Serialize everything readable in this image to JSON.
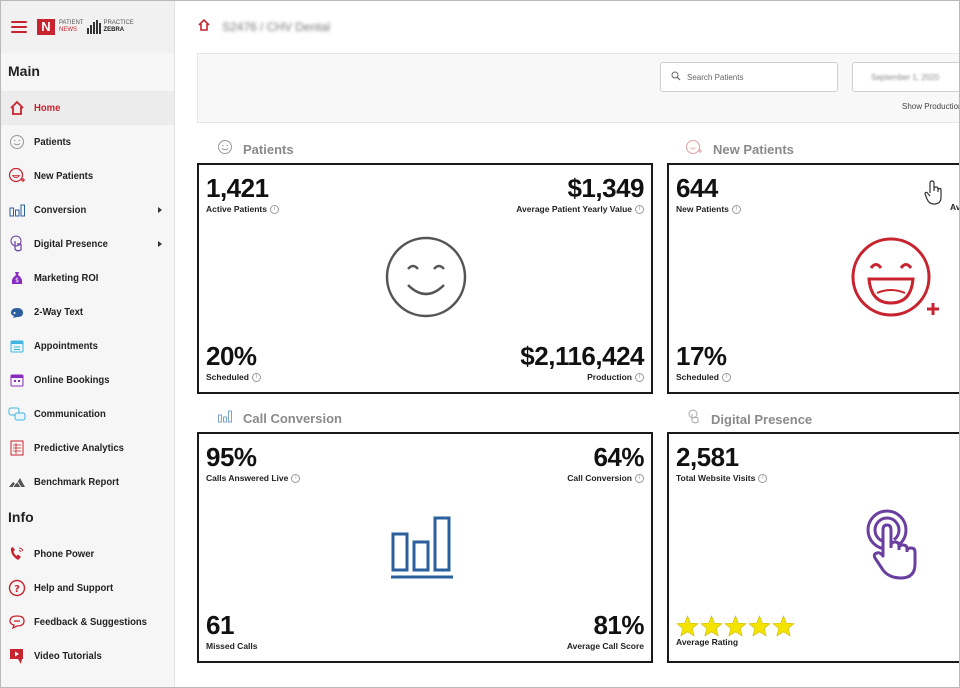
{
  "brand": {
    "logo_n": "N",
    "logo_text_1": "PATIENT",
    "logo_text_2": "NEWS",
    "logo_zebra_1": "PRACTICE",
    "logo_zebra_2": "ZEBRA"
  },
  "breadcrumb": {
    "text": "S2476 / CHV Dental"
  },
  "sidebar": {
    "main_title": "Main",
    "main_items": [
      {
        "label": "Home",
        "icon": "home-icon",
        "active": true
      },
      {
        "label": "Patients",
        "icon": "smile-icon"
      },
      {
        "label": "New Patients",
        "icon": "new-patient-icon"
      },
      {
        "label": "Conversion",
        "icon": "bar-chart-icon",
        "submenu": true
      },
      {
        "label": "Digital Presence",
        "icon": "pointer-icon",
        "submenu": true
      },
      {
        "label": "Marketing ROI",
        "icon": "money-bag-icon"
      },
      {
        "label": "2-Way Text",
        "icon": "chat-icon"
      },
      {
        "label": "Appointments",
        "icon": "calendar-icon"
      },
      {
        "label": "Online Bookings",
        "icon": "booking-icon"
      },
      {
        "label": "Communication",
        "icon": "communication-icon"
      },
      {
        "label": "Predictive Analytics",
        "icon": "analytics-icon"
      },
      {
        "label": "Benchmark Report",
        "icon": "benchmark-icon"
      }
    ],
    "info_title": "Info",
    "info_items": [
      {
        "label": "Phone Power",
        "icon": "phone-icon"
      },
      {
        "label": "Help and Support",
        "icon": "help-icon"
      },
      {
        "label": "Feedback & Suggestions",
        "icon": "feedback-icon"
      },
      {
        "label": "Video Tutorials",
        "icon": "video-icon"
      }
    ]
  },
  "toolbar": {
    "search_placeholder": "Search Patients",
    "date_value": "September 1, 2020",
    "show_production": "Show Production"
  },
  "sections": {
    "patients": {
      "title": "Patients",
      "top_left": {
        "value": "1,421",
        "label": "Active Patients"
      },
      "top_right": {
        "value": "$1,349",
        "label": "Average Patient Yearly Value"
      },
      "bottom_left": {
        "value": "20%",
        "label": "Scheduled"
      },
      "bottom_right": {
        "value": "$2,116,424",
        "label": "Production"
      }
    },
    "new_patients": {
      "title": "New Patients",
      "top_left": {
        "value": "644",
        "label": "New Patients"
      },
      "bottom_left": {
        "value": "17%",
        "label": "Scheduled"
      },
      "cut_label": "Av"
    },
    "call_conversion": {
      "title": "Call Conversion",
      "top_left": {
        "value": "95%",
        "label": "Calls Answered Live"
      },
      "top_right": {
        "value": "64%",
        "label": "Call Conversion"
      },
      "bottom_left": {
        "value": "61",
        "label": "Missed Calls"
      },
      "bottom_right": {
        "value": "81%",
        "label": "Average Call Score"
      }
    },
    "digital_presence": {
      "title": "Digital Presence",
      "top_left": {
        "value": "2,581",
        "label": "Total Website Visits"
      },
      "rating": 5,
      "rating_label": "Average Rating"
    }
  },
  "colors": {
    "accent": "#c8242f",
    "chart_blue": "#2b5f9e",
    "purple": "#6a3fa0",
    "star": "#f4e200"
  }
}
